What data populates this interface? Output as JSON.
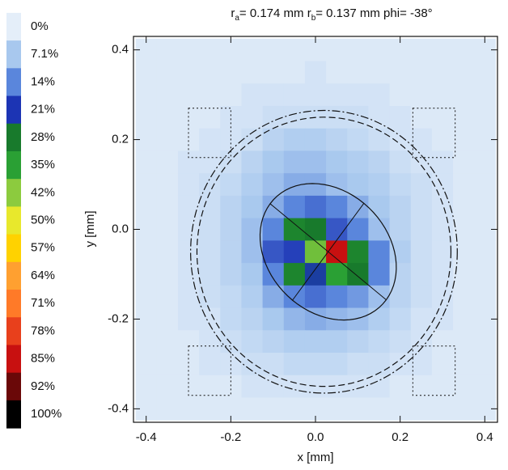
{
  "chart_data": {
    "type": "heatmap",
    "title": [
      {
        "text": "r"
      },
      {
        "text": "a",
        "sub": true
      },
      {
        "text": "= 0.174 mm  "
      },
      {
        "text": "r"
      },
      {
        "text": "b",
        "sub": true
      },
      {
        "text": "= 0.137 mm  "
      },
      {
        "text": "phi= -38°"
      }
    ],
    "x_label": "x [mm]",
    "y_label": "y [mm]",
    "xlim": [
      -0.43,
      0.43
    ],
    "ylim": [
      -0.43,
      0.43
    ],
    "xticks": [
      -0.4,
      -0.2,
      {
        "value": 0,
        "label": "0.0"
      },
      0.2,
      0.4
    ],
    "yticks": [
      -0.4,
      -0.2,
      {
        "value": 0,
        "label": "0.0"
      },
      0.2,
      0.4
    ],
    "x": [
      -0.4,
      -0.35,
      -0.3,
      -0.25,
      -0.2,
      -0.15,
      -0.1,
      -0.05,
      0,
      0.05,
      0.1,
      0.15,
      0.2,
      0.25,
      0.3,
      0.35,
      0.4
    ],
    "y": [
      0.4,
      0.35,
      0.3,
      0.25,
      0.2,
      0.15,
      0.1,
      0.05,
      0,
      -0.05,
      -0.1,
      -0.15,
      -0.2,
      -0.25,
      -0.3,
      -0.35,
      -0.4
    ],
    "z": [
      [
        1,
        1,
        1,
        1,
        1,
        1,
        1,
        1,
        1,
        1,
        1,
        1,
        1,
        1,
        1,
        1,
        1
      ],
      [
        1,
        1,
        1,
        1,
        1,
        1,
        1,
        1,
        2,
        1,
        1,
        1,
        1,
        1,
        1,
        1,
        1
      ],
      [
        1,
        1,
        1,
        1,
        1,
        2,
        2,
        2,
        2,
        2,
        2,
        2,
        1,
        1,
        1,
        1,
        1
      ],
      [
        1,
        1,
        1,
        1,
        2,
        2,
        3,
        3,
        3,
        3,
        3,
        2,
        2,
        1,
        1,
        1,
        1
      ],
      [
        1,
        1,
        1,
        2,
        2,
        3,
        5,
        6,
        6,
        5,
        4,
        3,
        2,
        2,
        1,
        1,
        1
      ],
      [
        1,
        1,
        2,
        2,
        3,
        5,
        7,
        8,
        8,
        7,
        6,
        5,
        3,
        2,
        2,
        1,
        1
      ],
      [
        1,
        1,
        2,
        3,
        4,
        6,
        8,
        10,
        10,
        8,
        7,
        6,
        4,
        3,
        2,
        1,
        1
      ],
      [
        1,
        1,
        2,
        3,
        5,
        7,
        10,
        14,
        16,
        14,
        10,
        7,
        5,
        3,
        2,
        1,
        1
      ],
      [
        1,
        1,
        2,
        3,
        5,
        8,
        14,
        30,
        28,
        18,
        14,
        8,
        5,
        3,
        2,
        1,
        1
      ],
      [
        1,
        1,
        2,
        3,
        5,
        8,
        18,
        20,
        40,
        85,
        30,
        14,
        6,
        3,
        2,
        1,
        1
      ],
      [
        1,
        1,
        2,
        3,
        5,
        7,
        14,
        30,
        22,
        35,
        28,
        14,
        5,
        3,
        2,
        1,
        1
      ],
      [
        1,
        1,
        2,
        3,
        4,
        6,
        10,
        14,
        16,
        14,
        12,
        8,
        5,
        3,
        2,
        1,
        1
      ],
      [
        1,
        1,
        2,
        2,
        4,
        5,
        7,
        9,
        10,
        9,
        8,
        6,
        4,
        2,
        2,
        1,
        1
      ],
      [
        1,
        1,
        1,
        2,
        3,
        4,
        5,
        6,
        6,
        6,
        5,
        4,
        3,
        2,
        1,
        1,
        1
      ],
      [
        1,
        1,
        1,
        2,
        2,
        3,
        3,
        4,
        4,
        4,
        3,
        3,
        2,
        2,
        1,
        1,
        1
      ],
      [
        1,
        1,
        1,
        1,
        1,
        2,
        2,
        2,
        2,
        2,
        2,
        2,
        1,
        1,
        1,
        1,
        1
      ],
      [
        1,
        1,
        1,
        1,
        1,
        1,
        1,
        1,
        1,
        1,
        1,
        1,
        1,
        1,
        1,
        1,
        1
      ]
    ],
    "colorbar": {
      "ticks": [
        {
          "value": 0,
          "label": "0%"
        },
        {
          "value": 7.1,
          "label": "7.1%"
        },
        {
          "value": 14,
          "label": "14%"
        },
        {
          "value": 21,
          "label": "21%"
        },
        {
          "value": 28,
          "label": "28%"
        },
        {
          "value": 35,
          "label": "35%"
        },
        {
          "value": 42,
          "label": "42%"
        },
        {
          "value": 50,
          "label": "50%"
        },
        {
          "value": 57,
          "label": "57%"
        },
        {
          "value": 64,
          "label": "64%"
        },
        {
          "value": 71,
          "label": "71%"
        },
        {
          "value": 78,
          "label": "78%"
        },
        {
          "value": 85,
          "label": "85%"
        },
        {
          "value": 92,
          "label": "92%"
        },
        {
          "value": 100,
          "label": "100%"
        }
      ],
      "colors": [
        "#e4eef9",
        "#a8c8ee",
        "#5a86dc",
        "#1c34b4",
        "#187a2c",
        "#2aa034",
        "#8ccb3e",
        "#e8e82c",
        "#ffd200",
        "#ffa030",
        "#ff7a28",
        "#e8401c",
        "#c81010",
        "#6a0808",
        "#000000"
      ]
    },
    "ellipse": {
      "cx": 0.03,
      "cy": -0.05,
      "ra": 0.174,
      "rb": 0.137,
      "phi": -38
    },
    "circles": [
      {
        "cx": 0.02,
        "cy": -0.05,
        "r": 0.3,
        "dash": "8 4"
      },
      {
        "cx": 0.02,
        "cy": -0.05,
        "r": 0.315,
        "dash": "10 3 2 3"
      }
    ],
    "boxes": [
      {
        "x0": -0.3,
        "x1": -0.2,
        "y0": 0.16,
        "y1": 0.27
      },
      {
        "x0": 0.23,
        "x1": 0.33,
        "y0": 0.16,
        "y1": 0.27
      },
      {
        "x0": -0.3,
        "x1": -0.2,
        "y0": -0.37,
        "y1": -0.26
      },
      {
        "x0": 0.23,
        "x1": 0.33,
        "y0": -0.37,
        "y1": -0.26
      }
    ]
  }
}
